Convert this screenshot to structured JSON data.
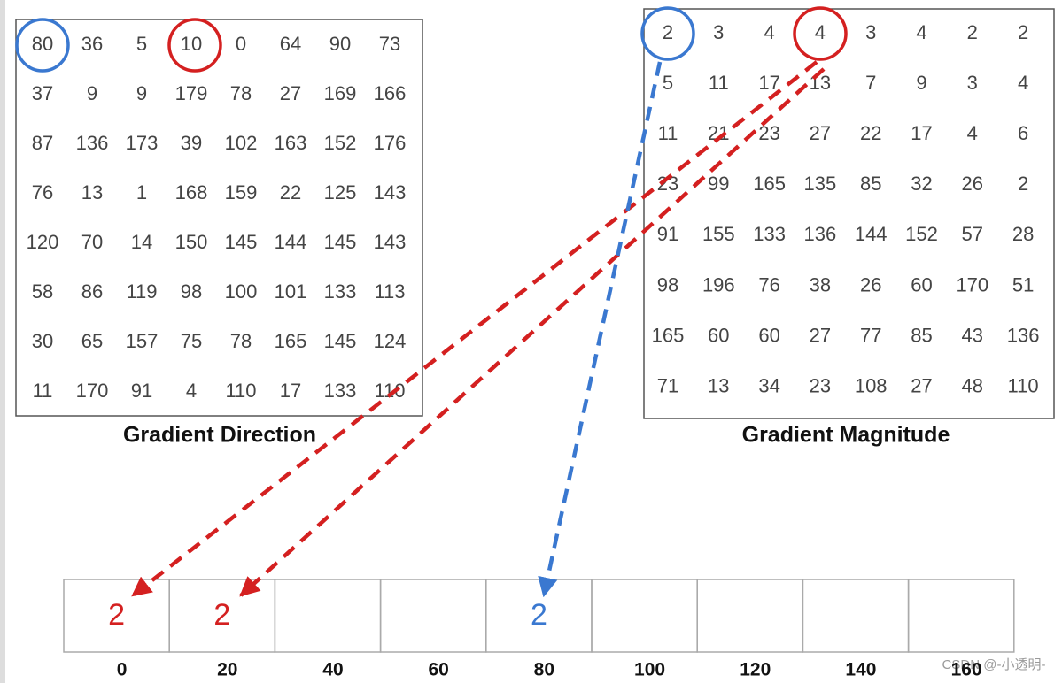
{
  "direction": {
    "title": "Gradient Direction",
    "rows": [
      [
        80,
        36,
        5,
        10,
        0,
        64,
        90,
        73
      ],
      [
        37,
        9,
        9,
        179,
        78,
        27,
        169,
        166
      ],
      [
        87,
        136,
        173,
        39,
        102,
        163,
        152,
        176
      ],
      [
        76,
        13,
        1,
        168,
        159,
        22,
        125,
        143
      ],
      [
        120,
        70,
        14,
        150,
        145,
        144,
        145,
        143
      ],
      [
        58,
        86,
        119,
        98,
        100,
        101,
        133,
        113
      ],
      [
        30,
        65,
        157,
        75,
        78,
        165,
        145,
        124
      ],
      [
        11,
        170,
        91,
        4,
        110,
        17,
        133,
        110
      ]
    ]
  },
  "magnitude": {
    "title": "Gradient Magnitude",
    "rows": [
      [
        2,
        3,
        4,
        4,
        3,
        4,
        2,
        2
      ],
      [
        5,
        11,
        17,
        13,
        7,
        9,
        3,
        4
      ],
      [
        11,
        21,
        23,
        27,
        22,
        17,
        4,
        6
      ],
      [
        23,
        99,
        165,
        135,
        85,
        32,
        26,
        2
      ],
      [
        91,
        155,
        133,
        136,
        144,
        152,
        57,
        28
      ],
      [
        98,
        196,
        76,
        38,
        26,
        60,
        170,
        51
      ],
      [
        165,
        60,
        60,
        27,
        77,
        85,
        43,
        136
      ],
      [
        71,
        13,
        34,
        23,
        108,
        27,
        48,
        110
      ]
    ]
  },
  "histogram": {
    "bin_labels": [
      0,
      20,
      40,
      60,
      80,
      100,
      120,
      140,
      160
    ],
    "entries": [
      {
        "bin": 0,
        "value": 2,
        "color": "#d42020"
      },
      {
        "bin": 1,
        "value": 2,
        "color": "#d42020"
      },
      {
        "bin": 4,
        "value": 2,
        "color": "#3a78d0"
      }
    ]
  },
  "watermark": "CSDN @-小透明-"
}
